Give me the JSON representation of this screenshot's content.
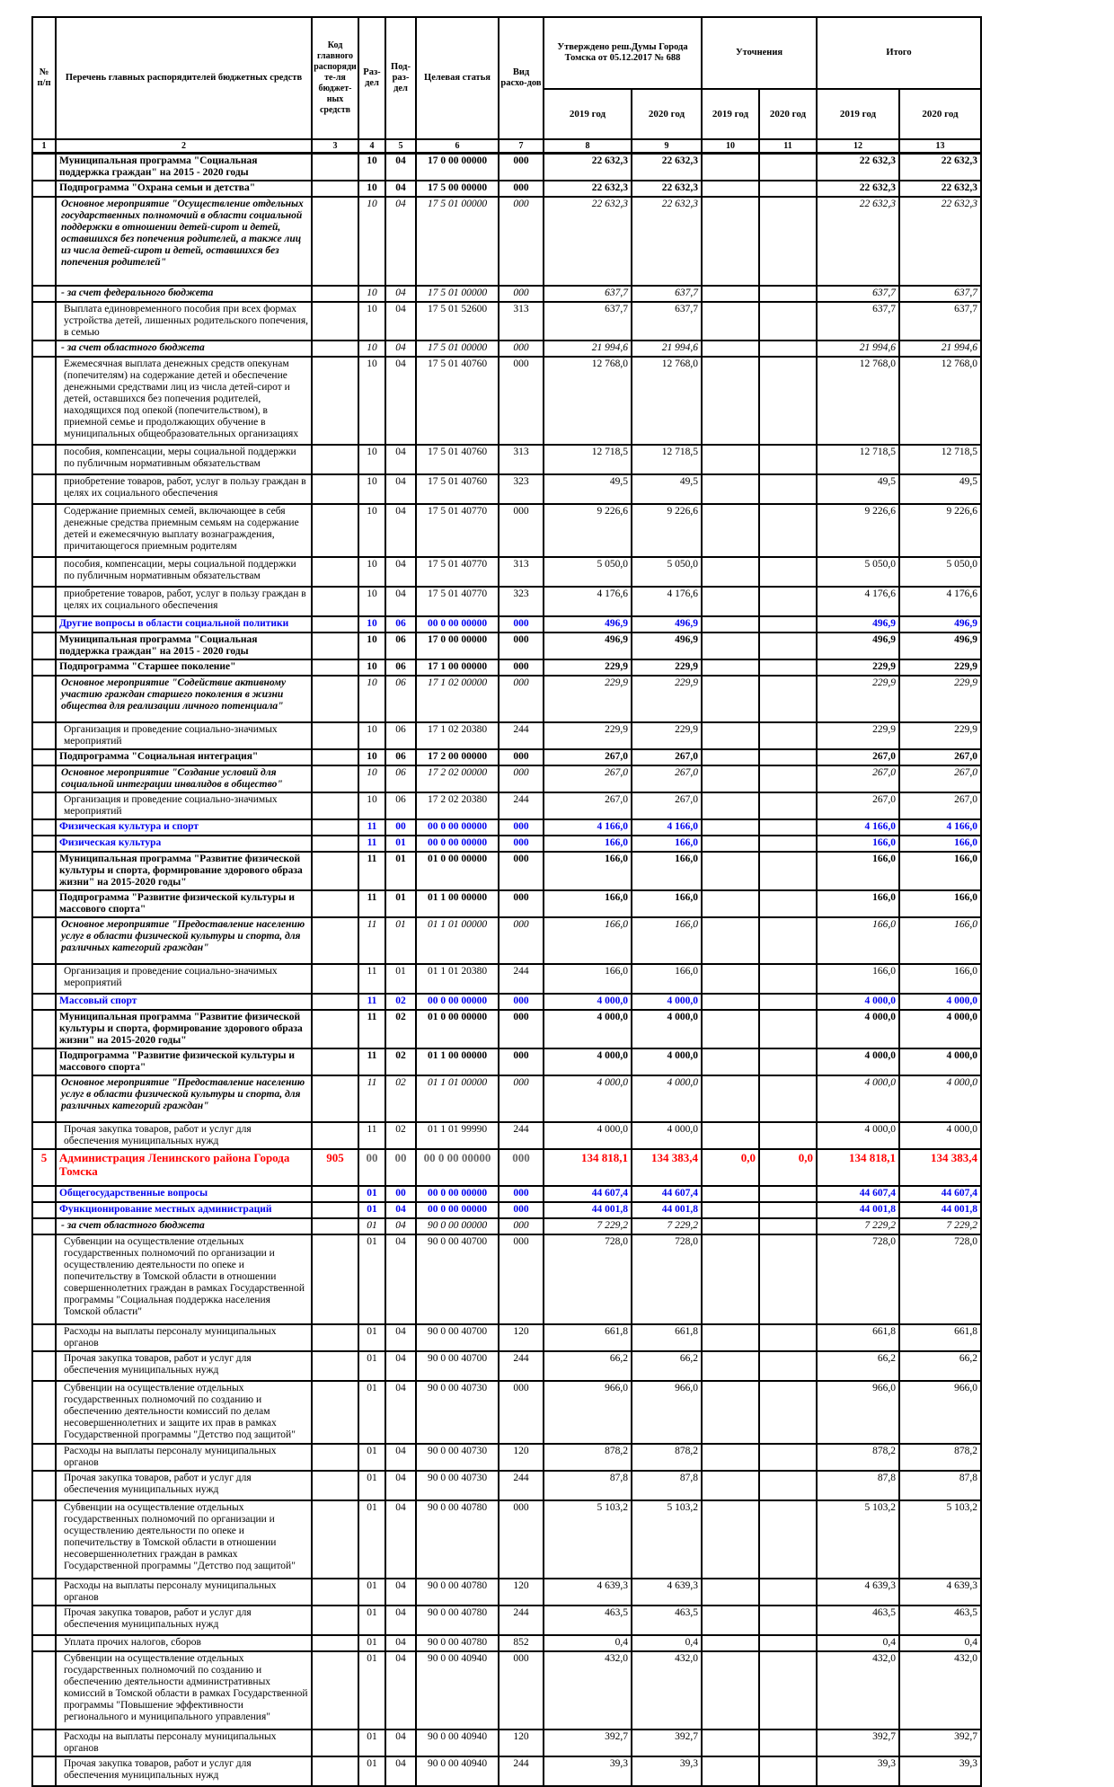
{
  "colors": {
    "section_blue": "#0000ee",
    "chief_red": "#ff0000",
    "grid_black": "#000000",
    "page_background": "#ffffff"
  },
  "table": {
    "header": {
      "col_num": "№ п/п",
      "col_name": "Перечень главных распорядителей бюджетных средств",
      "col_grbs": "Код главного распорядите-ля бюджет-ных средств",
      "col_rz": "Раз-дел",
      "col_pr": "Под-раз-дел",
      "col_csr": "Целевая статья",
      "col_vr": "Вид расхо-дов",
      "col_approved": "Утверждено реш.Думы Города Томска от 05.12.2017 № 688",
      "col_adjust": "Уточнения",
      "col_total": "Итого",
      "year_2019": "2019 год",
      "year_2020": "2020 год"
    },
    "col_nums": [
      "1",
      "2",
      "3",
      "4",
      "5",
      "6",
      "7",
      "8",
      "9",
      "10",
      "11",
      "12",
      "13"
    ],
    "rows": [
      {
        "name": "Муниципальная программа \"Социальная поддержка граждан\" на 2015 - 2020 годы",
        "rz": "10",
        "pr": "04",
        "cs": "17 0 00 00000",
        "vr": "000",
        "v": [
          "22 632,3",
          "22 632,3",
          "",
          "",
          "22 632,3",
          "22 632,3"
        ],
        "cls": "bold"
      },
      {
        "name": "Подпрограмма \"Охрана семьи и детства\"",
        "rz": "10",
        "pr": "04",
        "cs": "17 5 00 00000",
        "vr": "000",
        "v": [
          "22 632,3",
          "22 632,3",
          "",
          "",
          "22 632,3",
          "22 632,3"
        ],
        "cls": "bold"
      },
      {
        "name": "Основное мероприятие \"Осуществление отдельных государственных полномочий в области социальной поддержки в отношении детей-сирот и детей, оставшихся без попечения родителей, а также лиц из числа детей-сирот и детей, оставшихся без попечения родителей\"",
        "rz": "10",
        "pr": "04",
        "cs": "17 5 01 00000",
        "vr": "000",
        "v": [
          "22 632,3",
          "22 632,3",
          "",
          "",
          "22 632,3",
          "22 632,3"
        ],
        "cls": "ital",
        "sp": 18
      },
      {
        "name": "- за счет федерального бюджета",
        "rz": "10",
        "pr": "04",
        "cs": "17 5 01 00000",
        "vr": "000",
        "v": [
          "637,7",
          "637,7",
          "",
          "",
          "637,7",
          "637,7"
        ],
        "cls": "ital"
      },
      {
        "name": "Выплата единовременного пособия при всех формах устройства детей, лишенных родительского попечения, в семью",
        "rz": "10",
        "pr": "04",
        "cs": "17 5 01 52600",
        "vr": "313",
        "v": [
          "637,7",
          "637,7",
          "",
          "",
          "637,7",
          "637,7"
        ],
        "cls": "norm"
      },
      {
        "name": "- за счет областного бюджета",
        "rz": "10",
        "pr": "04",
        "cs": "17 5 01 00000",
        "vr": "000",
        "v": [
          "21 994,6",
          "21 994,6",
          "",
          "",
          "21 994,6",
          "21 994,6"
        ],
        "cls": "ital"
      },
      {
        "name": "Ежемесячная выплата денежных средств опекунам (попечителям) на содержание детей и обеспечение денежными средствами лиц из числа детей-сирот и детей, оставшихся без попечения родителей, находящихся под опекой (попечительством), в приемной семье и продолжающих обучение в муниципальных общеобразовательных организациях",
        "rz": "10",
        "pr": "04",
        "cs": "17 5 01 40760",
        "vr": "000",
        "v": [
          "12 768,0",
          "12 768,0",
          "",
          "",
          "12 768,0",
          "12 768,0"
        ],
        "cls": "norm",
        "sp": 4
      },
      {
        "name": "пособия, компенсации, меры социальной поддержки по публичным нормативным обязательствам",
        "rz": "10",
        "pr": "04",
        "cs": "17 5 01 40760",
        "vr": "313",
        "v": [
          "12 718,5",
          "12 718,5",
          "",
          "",
          "12 718,5",
          "12 718,5"
        ],
        "cls": "norm",
        "sp": 4
      },
      {
        "name": "приобретение товаров, работ, услуг в пользу граждан в целях их социального обеспечения",
        "rz": "10",
        "pr": "04",
        "cs": "17 5 01 40760",
        "vr": "323",
        "v": [
          "49,5",
          "49,5",
          "",
          "",
          "49,5",
          "49,5"
        ],
        "cls": "norm",
        "sp": 4
      },
      {
        "name": "Содержание приемных семей, включающее в себя денежные средства приемным семьям на содержание детей и ежемесячную выплату вознаграждения, причитающегося приемным родителям",
        "rz": "10",
        "pr": "04",
        "cs": "17 5 01 40770",
        "vr": "000",
        "v": [
          "9 226,6",
          "9 226,6",
          "",
          "",
          "9 226,6",
          "9 226,6"
        ],
        "cls": "norm",
        "sp": 4
      },
      {
        "name": "пособия, компенсации, меры социальной поддержки по публичным нормативным обязательствам",
        "rz": "10",
        "pr": "04",
        "cs": "17 5 01 40770",
        "vr": "313",
        "v": [
          "5 050,0",
          "5 050,0",
          "",
          "",
          "5 050,0",
          "5 050,0"
        ],
        "cls": "norm",
        "sp": 4
      },
      {
        "name": "приобретение товаров, работ, услуг в пользу граждан в целях их социального обеспечения",
        "rz": "10",
        "pr": "04",
        "cs": "17 5 01 40770",
        "vr": "323",
        "v": [
          "4 176,6",
          "4 176,6",
          "",
          "",
          "4 176,6",
          "4 176,6"
        ],
        "cls": "norm",
        "sp": 4
      },
      {
        "name": "Другие вопросы в области социальной политики",
        "rz": "10",
        "pr": "06",
        "cs": "00 0 00 00000",
        "vr": "000",
        "v": [
          "496,9",
          "496,9",
          "",
          "",
          "496,9",
          "496,9"
        ],
        "cls": "blue"
      },
      {
        "name": "Муниципальная программа \"Социальная поддержка граждан\" на 2015 - 2020 годы",
        "rz": "10",
        "pr": "06",
        "cs": "17 0 00 00000",
        "vr": "000",
        "v": [
          "496,9",
          "496,9",
          "",
          "",
          "496,9",
          "496,9"
        ],
        "cls": "bold"
      },
      {
        "name": "Подпрограмма \"Старшее поколение\"",
        "rz": "10",
        "pr": "06",
        "cs": "17 1 00 00000",
        "vr": "000",
        "v": [
          "229,9",
          "229,9",
          "",
          "",
          "229,9",
          "229,9"
        ],
        "cls": "bold"
      },
      {
        "name": "Основное мероприятие \"Содействие активному участию граждан старшего поколения в жизни общества для реализации личного потенциала\"",
        "rz": "10",
        "pr": "06",
        "cs": "17 1 02 00000",
        "vr": "000",
        "v": [
          "229,9",
          "229,9",
          "",
          "",
          "229,9",
          "229,9"
        ],
        "cls": "ital",
        "sp": 10
      },
      {
        "name": "Организация и проведение социально-значимых мероприятий",
        "rz": "10",
        "pr": "06",
        "cs": "17 1 02 20380",
        "vr": "244",
        "v": [
          "229,9",
          "229,9",
          "",
          "",
          "229,9",
          "229,9"
        ],
        "cls": "norm"
      },
      {
        "name": "Подпрограмма \"Социальная интеграция\"",
        "rz": "10",
        "pr": "06",
        "cs": "17 2 00 00000",
        "vr": "000",
        "v": [
          "267,0",
          "267,0",
          "",
          "",
          "267,0",
          "267,0"
        ],
        "cls": "bold"
      },
      {
        "name": "Основное мероприятие \"Создание условий для социальной интеграции инвалидов в общество\"",
        "rz": "10",
        "pr": "06",
        "cs": "17 2 02 00000",
        "vr": "000",
        "v": [
          "267,0",
          "267,0",
          "",
          "",
          "267,0",
          "267,0"
        ],
        "cls": "ital"
      },
      {
        "name": "Организация и проведение социально-значимых мероприятий",
        "rz": "10",
        "pr": "06",
        "cs": "17 2 02 20380",
        "vr": "244",
        "v": [
          "267,0",
          "267,0",
          "",
          "",
          "267,0",
          "267,0"
        ],
        "cls": "norm"
      },
      {
        "name": "Физическая культура и спорт",
        "rz": "11",
        "pr": "00",
        "cs": "00 0 00 00000",
        "vr": "000",
        "v": [
          "4 166,0",
          "4 166,0",
          "",
          "",
          "4 166,0",
          "4 166,0"
        ],
        "cls": "blue"
      },
      {
        "name": "Физическая культура",
        "rz": "11",
        "pr": "01",
        "cs": "00 0 00 00000",
        "vr": "000",
        "v": [
          "166,0",
          "166,0",
          "",
          "",
          "166,0",
          "166,0"
        ],
        "cls": "blue"
      },
      {
        "name": "Муниципальная программа \"Развитие физической культуры и спорта, формирование здорового образа жизни\" на 2015-2020 годы\"",
        "rz": "11",
        "pr": "01",
        "cs": "01 0 00 00000",
        "vr": "000",
        "v": [
          "166,0",
          "166,0",
          "",
          "",
          "166,0",
          "166,0"
        ],
        "cls": "bold"
      },
      {
        "name": "Подпрограмма \"Развитие физической культуры и массового спорта\"",
        "rz": "11",
        "pr": "01",
        "cs": "01 1 00 00000",
        "vr": "000",
        "v": [
          "166,0",
          "166,0",
          "",
          "",
          "166,0",
          "166,0"
        ],
        "cls": "bold"
      },
      {
        "name": "Основное мероприятие \"Предоставление населению услуг в области физической культуры и спорта, для различных категорий граждан\"",
        "rz": "11",
        "pr": "01",
        "cs": "01 1 01 00000",
        "vr": "000",
        "v": [
          "166,0",
          "166,0",
          "",
          "",
          "166,0",
          "166,0"
        ],
        "cls": "ital",
        "sp": 10
      },
      {
        "name": "Организация и проведение социально-значимых мероприятий",
        "rz": "11",
        "pr": "01",
        "cs": "01 1 01 20380",
        "vr": "244",
        "v": [
          "166,0",
          "166,0",
          "",
          "",
          "166,0",
          "166,0"
        ],
        "cls": "norm",
        "sp": 4
      },
      {
        "name": "Массовый спорт",
        "rz": "11",
        "pr": "02",
        "cs": "00 0 00 00000",
        "vr": "000",
        "v": [
          "4 000,0",
          "4 000,0",
          "",
          "",
          "4 000,0",
          "4 000,0"
        ],
        "cls": "blue"
      },
      {
        "name": "Муниципальная программа \"Развитие физической культуры и спорта, формирование здорового образа жизни\" на 2015-2020 годы\"",
        "rz": "11",
        "pr": "02",
        "cs": "01 0 00 00000",
        "vr": "000",
        "v": [
          "4 000,0",
          "4 000,0",
          "",
          "",
          "4 000,0",
          "4 000,0"
        ],
        "cls": "bold"
      },
      {
        "name": "Подпрограмма \"Развитие физической культуры и массового спорта\"",
        "rz": "11",
        "pr": "02",
        "cs": "01 1 00 00000",
        "vr": "000",
        "v": [
          "4 000,0",
          "4 000,0",
          "",
          "",
          "4 000,0",
          "4 000,0"
        ],
        "cls": "bold"
      },
      {
        "name": "Основное мероприятие \"Предоставление населению услуг в области физической культуры и спорта, для различных категорий граждан\"",
        "rz": "11",
        "pr": "02",
        "cs": "01 1 01 00000",
        "vr": "000",
        "v": [
          "4 000,0",
          "4 000,0",
          "",
          "",
          "4 000,0",
          "4 000,0"
        ],
        "cls": "ital",
        "sp": 10
      },
      {
        "name": "Прочая закупка товаров, работ и услуг для обеспечения муниципальных нужд",
        "rz": "11",
        "pr": "02",
        "cs": "01 1 01 99990",
        "vr": "244",
        "v": [
          "4 000,0",
          "4 000,0",
          "",
          "",
          "4 000,0",
          "4 000,0"
        ],
        "cls": "norm"
      },
      {
        "n": "5",
        "name": "Администрация Ленинского района Города Томска",
        "g": "905",
        "rz": "00",
        "pr": "00",
        "cs": "00 0 00 00000",
        "vr": "000",
        "v": [
          "134 818,1",
          "134 383,4",
          "0,0",
          "0,0",
          "134 818,1",
          "134 383,4"
        ],
        "cls": "red",
        "sp": 8
      },
      {
        "name": "Общегосударственные вопросы",
        "rz": "01",
        "pr": "00",
        "cs": "00 0 00 00000",
        "vr": "000",
        "v": [
          "44 607,4",
          "44 607,4",
          "",
          "",
          "44 607,4",
          "44 607,4"
        ],
        "cls": "blue"
      },
      {
        "name": "Функционирование местных администраций",
        "rz": "01",
        "pr": "04",
        "cs": "00 0 00 00000",
        "vr": "000",
        "v": [
          "44 001,8",
          "44 001,8",
          "",
          "",
          "44 001,8",
          "44 001,8"
        ],
        "cls": "blue"
      },
      {
        "name": "- за счет областного бюджета",
        "rz": "01",
        "pr": "04",
        "cs": "90 0 00 00000",
        "vr": "000",
        "v": [
          "7 229,2",
          "7 229,2",
          "",
          "",
          "7 229,2",
          "7 229,2"
        ],
        "cls": "ital"
      },
      {
        "name": "Субвенции на осуществление отдельных государственных полномочий по организации и осуществлению деятельности по опеке и попечительству в Томской области в отношении совершеннолетних граждан в рамках Государственной программы \"Социальная поддержка населения Томской области\"",
        "rz": "01",
        "pr": "04",
        "cs": "90 0 00 40700",
        "vr": "000",
        "v": [
          "728,0",
          "728,0",
          "",
          "",
          "728,0",
          "728,0"
        ],
        "cls": "norm",
        "sp": 6
      },
      {
        "name": "Расходы на выплаты персоналу муниципальных органов",
        "rz": "01",
        "pr": "04",
        "cs": "90 0 00 40700",
        "vr": "120",
        "v": [
          "661,8",
          "661,8",
          "",
          "",
          "661,8",
          "661,8"
        ],
        "cls": "norm"
      },
      {
        "name": "Прочая закупка товаров, работ и услуг для обеспечения муниципальных нужд",
        "rz": "01",
        "pr": "04",
        "cs": "90 0 00 40700",
        "vr": "244",
        "v": [
          "66,2",
          "66,2",
          "",
          "",
          "66,2",
          "66,2"
        ],
        "cls": "norm",
        "sp": 4
      },
      {
        "name": "Субвенции на осуществление отдельных государственных полномочий по созданию и обеспечению деятельности комиссий по делам несовершеннолетних и защите их прав в рамках Государственной программы \"Детство под защитой\"",
        "rz": "01",
        "pr": "04",
        "cs": "90 0 00 40730",
        "vr": "000",
        "v": [
          "966,0",
          "966,0",
          "",
          "",
          "966,0",
          "966,0"
        ],
        "cls": "norm",
        "sp": 2
      },
      {
        "name": "Расходы на выплаты персоналу муниципальных органов",
        "rz": "01",
        "pr": "04",
        "cs": "90 0 00 40730",
        "vr": "120",
        "v": [
          "878,2",
          "878,2",
          "",
          "",
          "878,2",
          "878,2"
        ],
        "cls": "norm"
      },
      {
        "name": "Прочая закупка товаров, работ и услуг для обеспечения муниципальных нужд",
        "rz": "01",
        "pr": "04",
        "cs": "90 0 00 40730",
        "vr": "244",
        "v": [
          "87,8",
          "87,8",
          "",
          "",
          "87,8",
          "87,8"
        ],
        "cls": "norm",
        "sp": 4
      },
      {
        "name": "Субвенции на осуществление отдельных государственных полномочий по организации и осуществлению деятельности по опеке и попечительству в Томской области в отношении несовершеннолетних граждан в рамках Государственной программы \"Детство под защитой\"",
        "rz": "01",
        "pr": "04",
        "cs": "90 0 00 40780",
        "vr": "000",
        "v": [
          "5 103,2",
          "5 103,2",
          "",
          "",
          "5 103,2",
          "5 103,2"
        ],
        "cls": "norm",
        "sp": 6
      },
      {
        "name": "Расходы на выплаты персоналу муниципальных органов",
        "rz": "01",
        "pr": "04",
        "cs": "90 0 00 40780",
        "vr": "120",
        "v": [
          "4 639,3",
          "4 639,3",
          "",
          "",
          "4 639,3",
          "4 639,3"
        ],
        "cls": "norm"
      },
      {
        "name": "Прочая закупка товаров, работ и услуг для обеспечения муниципальных нужд",
        "rz": "01",
        "pr": "04",
        "cs": "90 0 00 40780",
        "vr": "244",
        "v": [
          "463,5",
          "463,5",
          "",
          "",
          "463,5",
          "463,5"
        ],
        "cls": "norm",
        "sp": 4
      },
      {
        "name": "Уплата прочих налогов, сборов",
        "rz": "01",
        "pr": "04",
        "cs": "90 0 00 40780",
        "vr": "852",
        "v": [
          "0,4",
          "0,4",
          "",
          "",
          "0,4",
          "0,4"
        ],
        "cls": "norm"
      },
      {
        "name": "Субвенции на осуществление отдельных государственных полномочий по созданию и обеспечению деятельности административных комиссий в Томской области в рамках Государственной программы \"Повышение эффективности регионального и муниципального управления\"",
        "rz": "01",
        "pr": "04",
        "cs": "90 0 00 40940",
        "vr": "000",
        "v": [
          "432,0",
          "432,0",
          "",
          "",
          "432,0",
          "432,0"
        ],
        "cls": "norm",
        "sp": 6
      },
      {
        "name": "Расходы на выплаты персоналу муниципальных органов",
        "rz": "01",
        "pr": "04",
        "cs": "90 0 00 40940",
        "vr": "120",
        "v": [
          "392,7",
          "392,7",
          "",
          "",
          "392,7",
          "392,7"
        ],
        "cls": "norm"
      },
      {
        "name": "Прочая закупка товаров, работ и услуг для обеспечения муниципальных нужд",
        "rz": "01",
        "pr": "04",
        "cs": "90 0 00 40940",
        "vr": "244",
        "v": [
          "39,3",
          "39,3",
          "",
          "",
          "39,3",
          "39,3"
        ],
        "cls": "norm",
        "sp": 4
      }
    ]
  }
}
